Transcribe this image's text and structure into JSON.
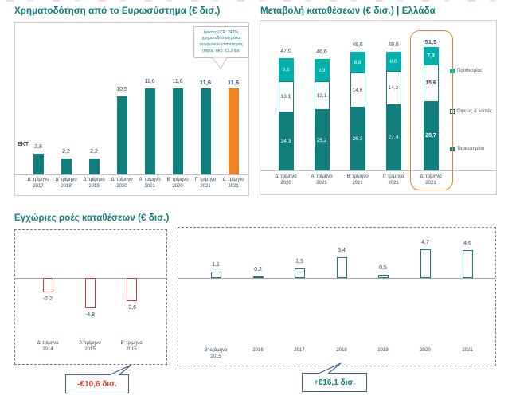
{
  "colors": {
    "teal_title": "#0E7C80",
    "teal_bar": "#11807D",
    "light_teal": "#00B0AD",
    "orange": "#F58220",
    "red": "#E23B2E",
    "navy_text": "#33485C",
    "callout_border": "#44608C",
    "panel_border": "#D0CECE",
    "axis_gray": "#BFBFBF",
    "dashed_border": "#7F7F7F",
    "legend_text": "#4A5A6A"
  },
  "chart_data": [
    {
      "id": "eurosystem-funding",
      "type": "bar",
      "title": "Χρηματοδότηση από το Ευρωσύστημα (€ δισ.)",
      "annotation": "ΕΚΤ",
      "callout_lines": [
        "Δείκτης LCR: 242%,",
        "χρηματοδότηση μέσω",
        "συμφωνιών επαναγοράς",
        "(repos, net): €1,2 δισ."
      ],
      "categories": [
        [
          "Δ' τρίμηνο",
          "2017"
        ],
        [
          "Δ' τρίμηνο",
          "2018"
        ],
        [
          "Δ' τρίμηνο",
          "2019"
        ],
        [
          "Δ' τρίμηνο",
          "2020"
        ],
        [
          "Α' τρίμηνο",
          "2021"
        ],
        [
          "Β' τρίμηνο",
          "2020"
        ],
        [
          "Γ' τρίμηνο",
          "2021"
        ],
        [
          "Δ' τρίμηνο",
          "2021"
        ]
      ],
      "values": [
        2.8,
        2.2,
        2.2,
        10.5,
        11.6,
        11.6,
        11.6,
        11.6
      ],
      "value_labels": [
        "2,8",
        "2,2",
        "2,2",
        "10,5",
        "11,6",
        "11,6",
        "11,6",
        "11,6"
      ],
      "bold_value_indexes": [
        6,
        7
      ],
      "highlight_index": 7,
      "ylim": [
        0,
        13
      ],
      "grid": false,
      "legend_position": "none"
    },
    {
      "id": "deposits-change-greece",
      "type": "bar",
      "stacked": true,
      "title": "Μεταβολή καταθέσεων (€ δισ.) | Ελλάδα",
      "categories": [
        [
          "Δ' τρίμηνο",
          "2020"
        ],
        [
          "Α' τρίμηνο",
          "2021"
        ],
        [
          "Β' τρίμηνο",
          "2021"
        ],
        [
          "Γ' τρίμηνο",
          "2021"
        ],
        [
          "Δ' τρίμηνο",
          "2021"
        ]
      ],
      "totals": [
        47.0,
        46.6,
        49.6,
        49.6,
        51.5
      ],
      "total_labels": [
        "47,0",
        "46,6",
        "49,6",
        "49,6",
        "51,5"
      ],
      "series": [
        {
          "name": "Ταμιευτηρίου",
          "values": [
            24.3,
            25.2,
            26.3,
            27.4,
            28.7
          ],
          "labels": [
            "24,3",
            "25,2",
            "26,3",
            "27,4",
            "28,7"
          ],
          "style": "filled-dark"
        },
        {
          "name": "Όψεως & λοιπές",
          "values": [
            13.1,
            12.1,
            14.6,
            14.2,
            15.6
          ],
          "labels": [
            "13,1",
            "12,1",
            "14,6",
            "14,2",
            "15,6"
          ],
          "style": "outlined-white"
        },
        {
          "name": "Προθεσμίας",
          "values": [
            9.6,
            9.3,
            8.8,
            8.0,
            7.3
          ],
          "labels": [
            "9,6",
            "9,3",
            "8,8",
            "8,0",
            "7,3"
          ],
          "style": "filled-light"
        }
      ],
      "legend": [
        {
          "label": "Προθεσμίας",
          "swatch": "filled-light"
        },
        {
          "label": "Όψεως & λοιπές",
          "swatch": "outlined-white"
        },
        {
          "label": "Ταμιευτηρίου",
          "swatch": "filled-dark"
        }
      ],
      "legend_position": "right",
      "highlight_index": 4,
      "ylim": [
        0,
        55
      ],
      "grid": false
    },
    {
      "id": "domestic-flows-negative",
      "type": "bar",
      "title": "Εγχώριες ροές καταθέσεων (€ δισ.)",
      "categories": [
        [
          "Δ' τρίμηνο",
          "2014"
        ],
        [
          "Α' τρίμηνο",
          "2015"
        ],
        [
          "Β' τρίμηνο",
          "2015"
        ]
      ],
      "values": [
        -2.2,
        -4.8,
        -3.6
      ],
      "value_labels": [
        "-2,2",
        "-4,8",
        "-3,6"
      ],
      "bar_style": "outline-red",
      "callout": "-€10,6 δισ.",
      "ylim": [
        -6,
        4
      ],
      "grid": false
    },
    {
      "id": "domestic-flows-positive",
      "type": "bar",
      "categories": [
        [
          "Β' εξάμηνο",
          "2015"
        ],
        [
          "2016"
        ],
        [
          "2017"
        ],
        [
          "2018"
        ],
        [
          "2019"
        ],
        [
          "2020"
        ],
        [
          "2021"
        ]
      ],
      "values": [
        1.1,
        0.2,
        1.5,
        3.4,
        0.5,
        4.7,
        4.6
      ],
      "value_labels": [
        "1,1",
        "0,2",
        "1,5",
        "3,4",
        "0,5",
        "4,7",
        "4,6"
      ],
      "bar_style": "outline-teal",
      "callout": "+€16,1 δισ.",
      "ylim": [
        -6,
        6
      ],
      "grid": false
    }
  ]
}
